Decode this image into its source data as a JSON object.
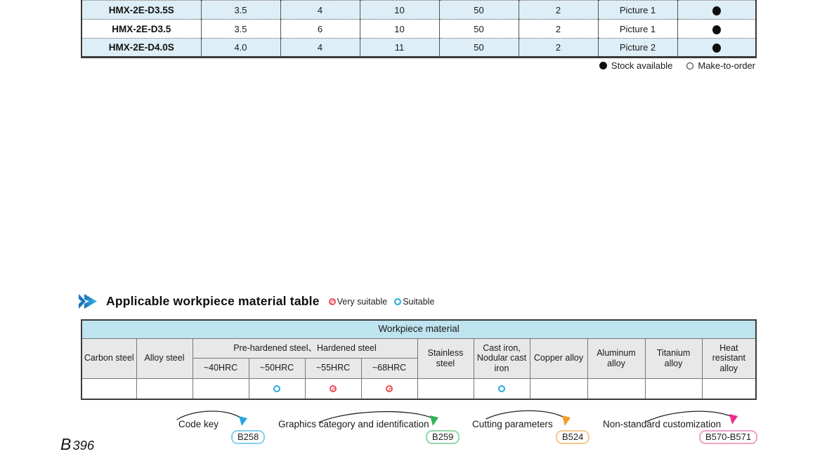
{
  "spec_table": {
    "rows": [
      {
        "model": "HMX-2E-D3.5S",
        "cells": [
          "3.5",
          "4",
          "10",
          "50",
          "2",
          "Picture 1"
        ],
        "stock": "available"
      },
      {
        "model": "HMX-2E-D3.5",
        "cells": [
          "3.5",
          "6",
          "10",
          "50",
          "2",
          "Picture 1"
        ],
        "stock": "available"
      },
      {
        "model": "HMX-2E-D4.0S",
        "cells": [
          "4.0",
          "4",
          "11",
          "50",
          "2",
          "Picture 2"
        ],
        "stock": "available"
      }
    ],
    "legend": {
      "stock_label": "Stock available",
      "mto_label": "Make-to-order"
    }
  },
  "section": {
    "title": "Applicable workpiece material table",
    "legend": {
      "very_label": "Very suitable",
      "suitable_label": "Suitable"
    }
  },
  "workpiece_table": {
    "title": "Workpiece material",
    "headers": {
      "carbon": "Carbon steel",
      "alloy": "Alloy steel",
      "hardened_group": "Pre-hardened steel、Hardened steel",
      "hrc": [
        "~40HRC",
        "~50HRC",
        "~55HRC",
        "~68HRC"
      ],
      "stainless": "Stainless steel",
      "cast": "Cast iron, Nodular cast iron",
      "copper": "Copper alloy",
      "aluminum": "Aluminum alloy",
      "titanium": "Titanium alloy",
      "heat": "Heat resistant alloy"
    },
    "suitability": [
      "",
      "",
      "",
      "suitable",
      "very",
      "very",
      "",
      "suitable",
      "",
      "",
      "",
      ""
    ]
  },
  "annotations": [
    {
      "label": "Code key",
      "ref": "B258",
      "color": "#2aa6df",
      "border": "#85cfee"
    },
    {
      "label": "Graphics category and identification",
      "ref": "B259",
      "color": "#2fb457",
      "border": "#93d6a6"
    },
    {
      "label": "Cutting parameters",
      "ref": "B524",
      "color": "#f79b2a",
      "border": "#f8c78c"
    },
    {
      "label": "Non-standard customization",
      "ref": "B570-B571",
      "color": "#ec2e8f",
      "border": "#f2a0c6"
    }
  ],
  "page": {
    "number_prefix": "B",
    "number": "396"
  },
  "colors": {
    "row_blue": "#ddeef6",
    "header_blue": "#bee4ef",
    "header_gray": "#e8e8e8",
    "very_suitable": "#ee4f58",
    "suitable": "#29a8e0"
  }
}
